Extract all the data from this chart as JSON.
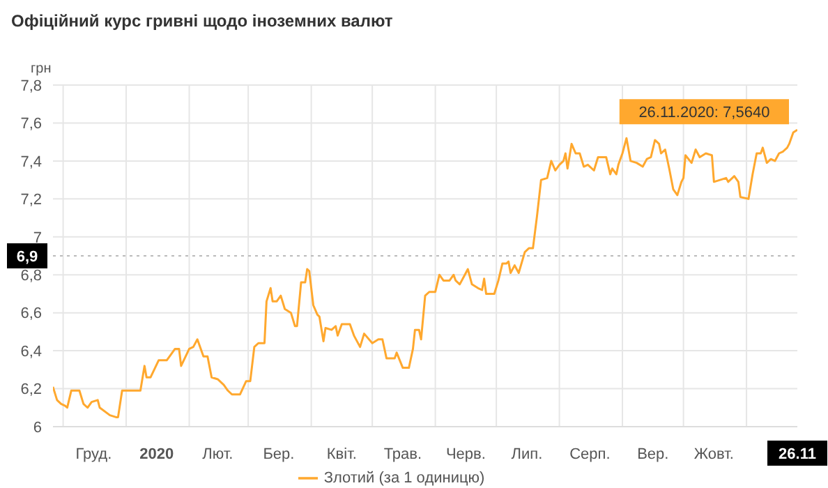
{
  "chart_data": {
    "type": "line",
    "title": "Офіційний курс гривні щодо іноземних валют",
    "ylabel": "грн",
    "x": [
      "2019-11-26",
      "2019-11-28",
      "2019-11-30",
      "2019-12-02",
      "2019-12-03",
      "2019-12-05",
      "2019-12-09",
      "2019-12-11",
      "2019-12-13",
      "2019-12-15",
      "2019-12-18",
      "2019-12-19",
      "2019-12-24",
      "2019-12-27",
      "2019-12-28",
      "2019-12-30",
      "2020-01-08",
      "2020-01-10",
      "2020-01-11",
      "2020-01-13",
      "2020-01-17",
      "2020-01-21",
      "2020-01-25",
      "2020-01-27",
      "2020-01-28",
      "2020-02-01",
      "2020-02-03",
      "2020-02-05",
      "2020-02-08",
      "2020-02-10",
      "2020-02-12",
      "2020-02-15",
      "2020-02-18",
      "2020-02-20",
      "2020-02-22",
      "2020-02-26",
      "2020-02-29",
      "2020-03-02",
      "2020-03-04",
      "2020-03-06",
      "2020-03-09",
      "2020-03-10",
      "2020-03-12",
      "2020-03-13",
      "2020-03-15",
      "2020-03-17",
      "2020-03-19",
      "2020-03-22",
      "2020-03-24",
      "2020-03-25",
      "2020-03-27",
      "2020-03-29",
      "2020-03-30",
      "2020-03-31",
      "2020-04-02",
      "2020-04-04",
      "2020-04-05",
      "2020-04-07",
      "2020-04-08",
      "2020-04-11",
      "2020-04-13",
      "2020-04-14",
      "2020-04-16",
      "2020-04-20",
      "2020-04-22",
      "2020-04-25",
      "2020-04-27",
      "2020-05-01",
      "2020-05-04",
      "2020-05-06",
      "2020-05-08",
      "2020-05-12",
      "2020-05-13",
      "2020-05-16",
      "2020-05-19",
      "2020-05-21",
      "2020-05-22",
      "2020-05-24",
      "2020-05-25",
      "2020-05-27",
      "2020-05-29",
      "2020-06-01",
      "2020-06-03",
      "2020-06-05",
      "2020-06-08",
      "2020-06-10",
      "2020-06-11",
      "2020-06-13",
      "2020-06-15",
      "2020-06-17",
      "2020-06-19",
      "2020-06-22",
      "2020-06-24",
      "2020-06-25",
      "2020-06-26",
      "2020-06-30",
      "2020-07-02",
      "2020-07-04",
      "2020-07-06",
      "2020-07-07",
      "2020-07-08",
      "2020-07-10",
      "2020-07-12",
      "2020-07-15",
      "2020-07-17",
      "2020-07-19",
      "2020-07-21",
      "2020-07-23",
      "2020-07-26",
      "2020-07-28",
      "2020-07-30",
      "2020-08-01",
      "2020-08-03",
      "2020-08-04",
      "2020-08-05",
      "2020-08-07",
      "2020-08-09",
      "2020-08-11",
      "2020-08-13",
      "2020-08-15",
      "2020-08-18",
      "2020-08-20",
      "2020-08-24",
      "2020-08-26",
      "2020-08-27",
      "2020-08-29",
      "2020-08-30",
      "2020-09-01",
      "2020-09-03",
      "2020-09-05",
      "2020-09-08",
      "2020-09-11",
      "2020-09-13",
      "2020-09-15",
      "2020-09-17",
      "2020-09-19",
      "2020-09-20",
      "2020-09-22",
      "2020-09-24",
      "2020-09-26",
      "2020-09-28",
      "2020-09-30",
      "2020-10-01",
      "2020-10-02",
      "2020-10-05",
      "2020-10-07",
      "2020-10-09",
      "2020-10-12",
      "2020-10-15",
      "2020-10-16",
      "2020-10-19",
      "2020-10-22",
      "2020-10-23",
      "2020-10-26",
      "2020-10-28",
      "2020-10-29",
      "2020-11-02",
      "2020-11-04",
      "2020-11-06",
      "2020-11-08",
      "2020-11-09",
      "2020-11-11",
      "2020-11-13",
      "2020-11-15",
      "2020-11-17",
      "2020-11-19",
      "2020-11-21",
      "2020-11-22",
      "2020-11-24",
      "2020-11-26"
    ],
    "series": [
      {
        "name": "Злотий (за 1 одиницю)",
        "color": "#ffa82e",
        "values": [
          6.21,
          6.14,
          6.12,
          6.11,
          6.1,
          6.19,
          6.19,
          6.12,
          6.1,
          6.13,
          6.14,
          6.1,
          6.06,
          6.05,
          6.05,
          6.19,
          6.19,
          6.32,
          6.26,
          6.26,
          6.35,
          6.35,
          6.41,
          6.41,
          6.32,
          6.41,
          6.42,
          6.46,
          6.37,
          6.37,
          6.26,
          6.25,
          6.22,
          6.19,
          6.17,
          6.17,
          6.24,
          6.24,
          6.42,
          6.44,
          6.44,
          6.66,
          6.73,
          6.66,
          6.66,
          6.69,
          6.62,
          6.6,
          6.53,
          6.53,
          6.76,
          6.76,
          6.83,
          6.82,
          6.64,
          6.59,
          6.58,
          6.45,
          6.52,
          6.51,
          6.53,
          6.48,
          6.54,
          6.54,
          6.48,
          6.42,
          6.49,
          6.44,
          6.46,
          6.46,
          6.36,
          6.36,
          6.39,
          6.31,
          6.31,
          6.41,
          6.51,
          6.51,
          6.46,
          6.69,
          6.71,
          6.71,
          6.8,
          6.77,
          6.77,
          6.8,
          6.77,
          6.75,
          6.79,
          6.83,
          6.75,
          6.73,
          6.72,
          6.78,
          6.7,
          6.7,
          6.77,
          6.86,
          6.86,
          6.87,
          6.81,
          6.85,
          6.81,
          6.92,
          6.94,
          6.94,
          7.11,
          7.3,
          7.31,
          7.4,
          7.35,
          7.38,
          7.4,
          7.44,
          7.36,
          7.49,
          7.44,
          7.44,
          7.37,
          7.38,
          7.35,
          7.42,
          7.42,
          7.33,
          7.36,
          7.33,
          7.38,
          7.44,
          7.52,
          7.4,
          7.39,
          7.37,
          7.41,
          7.42,
          7.51,
          7.49,
          7.44,
          7.46,
          7.36,
          7.25,
          7.22,
          7.29,
          7.31,
          7.43,
          7.39,
          7.46,
          7.42,
          7.44,
          7.43,
          7.29,
          7.3,
          7.31,
          7.29,
          7.32,
          7.29,
          7.21,
          7.2,
          7.33,
          7.44,
          7.44,
          7.47,
          7.39,
          7.41,
          7.4,
          7.44,
          7.45,
          7.47,
          7.49,
          7.55,
          7.564
        ]
      }
    ],
    "xlim": [
      "2019-11-26",
      "2020-11-26"
    ],
    "xticks": [
      {
        "value": "2019-12-01",
        "label": null
      },
      {
        "value": "2019-12-16",
        "label": "Груд."
      },
      {
        "value": "2020-01-01",
        "label": null
      },
      {
        "value": "2020-01-16",
        "label": "2020"
      },
      {
        "value": "2020-02-01",
        "label": null
      },
      {
        "value": "2020-02-15",
        "label": "Лют."
      },
      {
        "value": "2020-03-01",
        "label": null
      },
      {
        "value": "2020-03-16",
        "label": "Бер."
      },
      {
        "value": "2020-04-01",
        "label": null
      },
      {
        "value": "2020-04-16",
        "label": "Квіт."
      },
      {
        "value": "2020-05-01",
        "label": null
      },
      {
        "value": "2020-05-16",
        "label": "Трав."
      },
      {
        "value": "2020-06-01",
        "label": null
      },
      {
        "value": "2020-06-16",
        "label": "Черв."
      },
      {
        "value": "2020-07-01",
        "label": null
      },
      {
        "value": "2020-07-16",
        "label": "Лип."
      },
      {
        "value": "2020-08-01",
        "label": null
      },
      {
        "value": "2020-08-16",
        "label": "Серп."
      },
      {
        "value": "2020-09-01",
        "label": null
      },
      {
        "value": "2020-09-16",
        "label": "Вер."
      },
      {
        "value": "2020-10-01",
        "label": null
      },
      {
        "value": "2020-10-16",
        "label": "Жовт."
      },
      {
        "value": "2020-11-01",
        "label": null
      },
      {
        "value": "2020-11-26",
        "label": "26.11"
      }
    ],
    "ylim": [
      6,
      7.8
    ],
    "yticks": [
      6,
      {
        "value": 6.2,
        "label": "6,2"
      },
      {
        "value": 6.4,
        "label": "6,4"
      },
      {
        "value": 6.6,
        "label": "6,6"
      },
      {
        "value": 6.8,
        "label": "6,8"
      },
      7,
      {
        "value": 7.2,
        "label": "7,2"
      },
      {
        "value": 7.4,
        "label": "7,4"
      },
      {
        "value": 7.6,
        "label": "7,6"
      },
      {
        "value": 7.8,
        "label": "7,8"
      }
    ],
    "ref_lines": [
      {
        "axis": "y",
        "value": 6.9,
        "label": "6,9",
        "color": "#bbbbbb",
        "line_style": "dotted"
      }
    ],
    "annotations": [
      {
        "text": "26.11.2020: 7,5640",
        "x": "2020-11-26",
        "y": 7.564
      }
    ],
    "grid": true,
    "legend": "bottom",
    "marker": "none",
    "line_style": "solid"
  }
}
